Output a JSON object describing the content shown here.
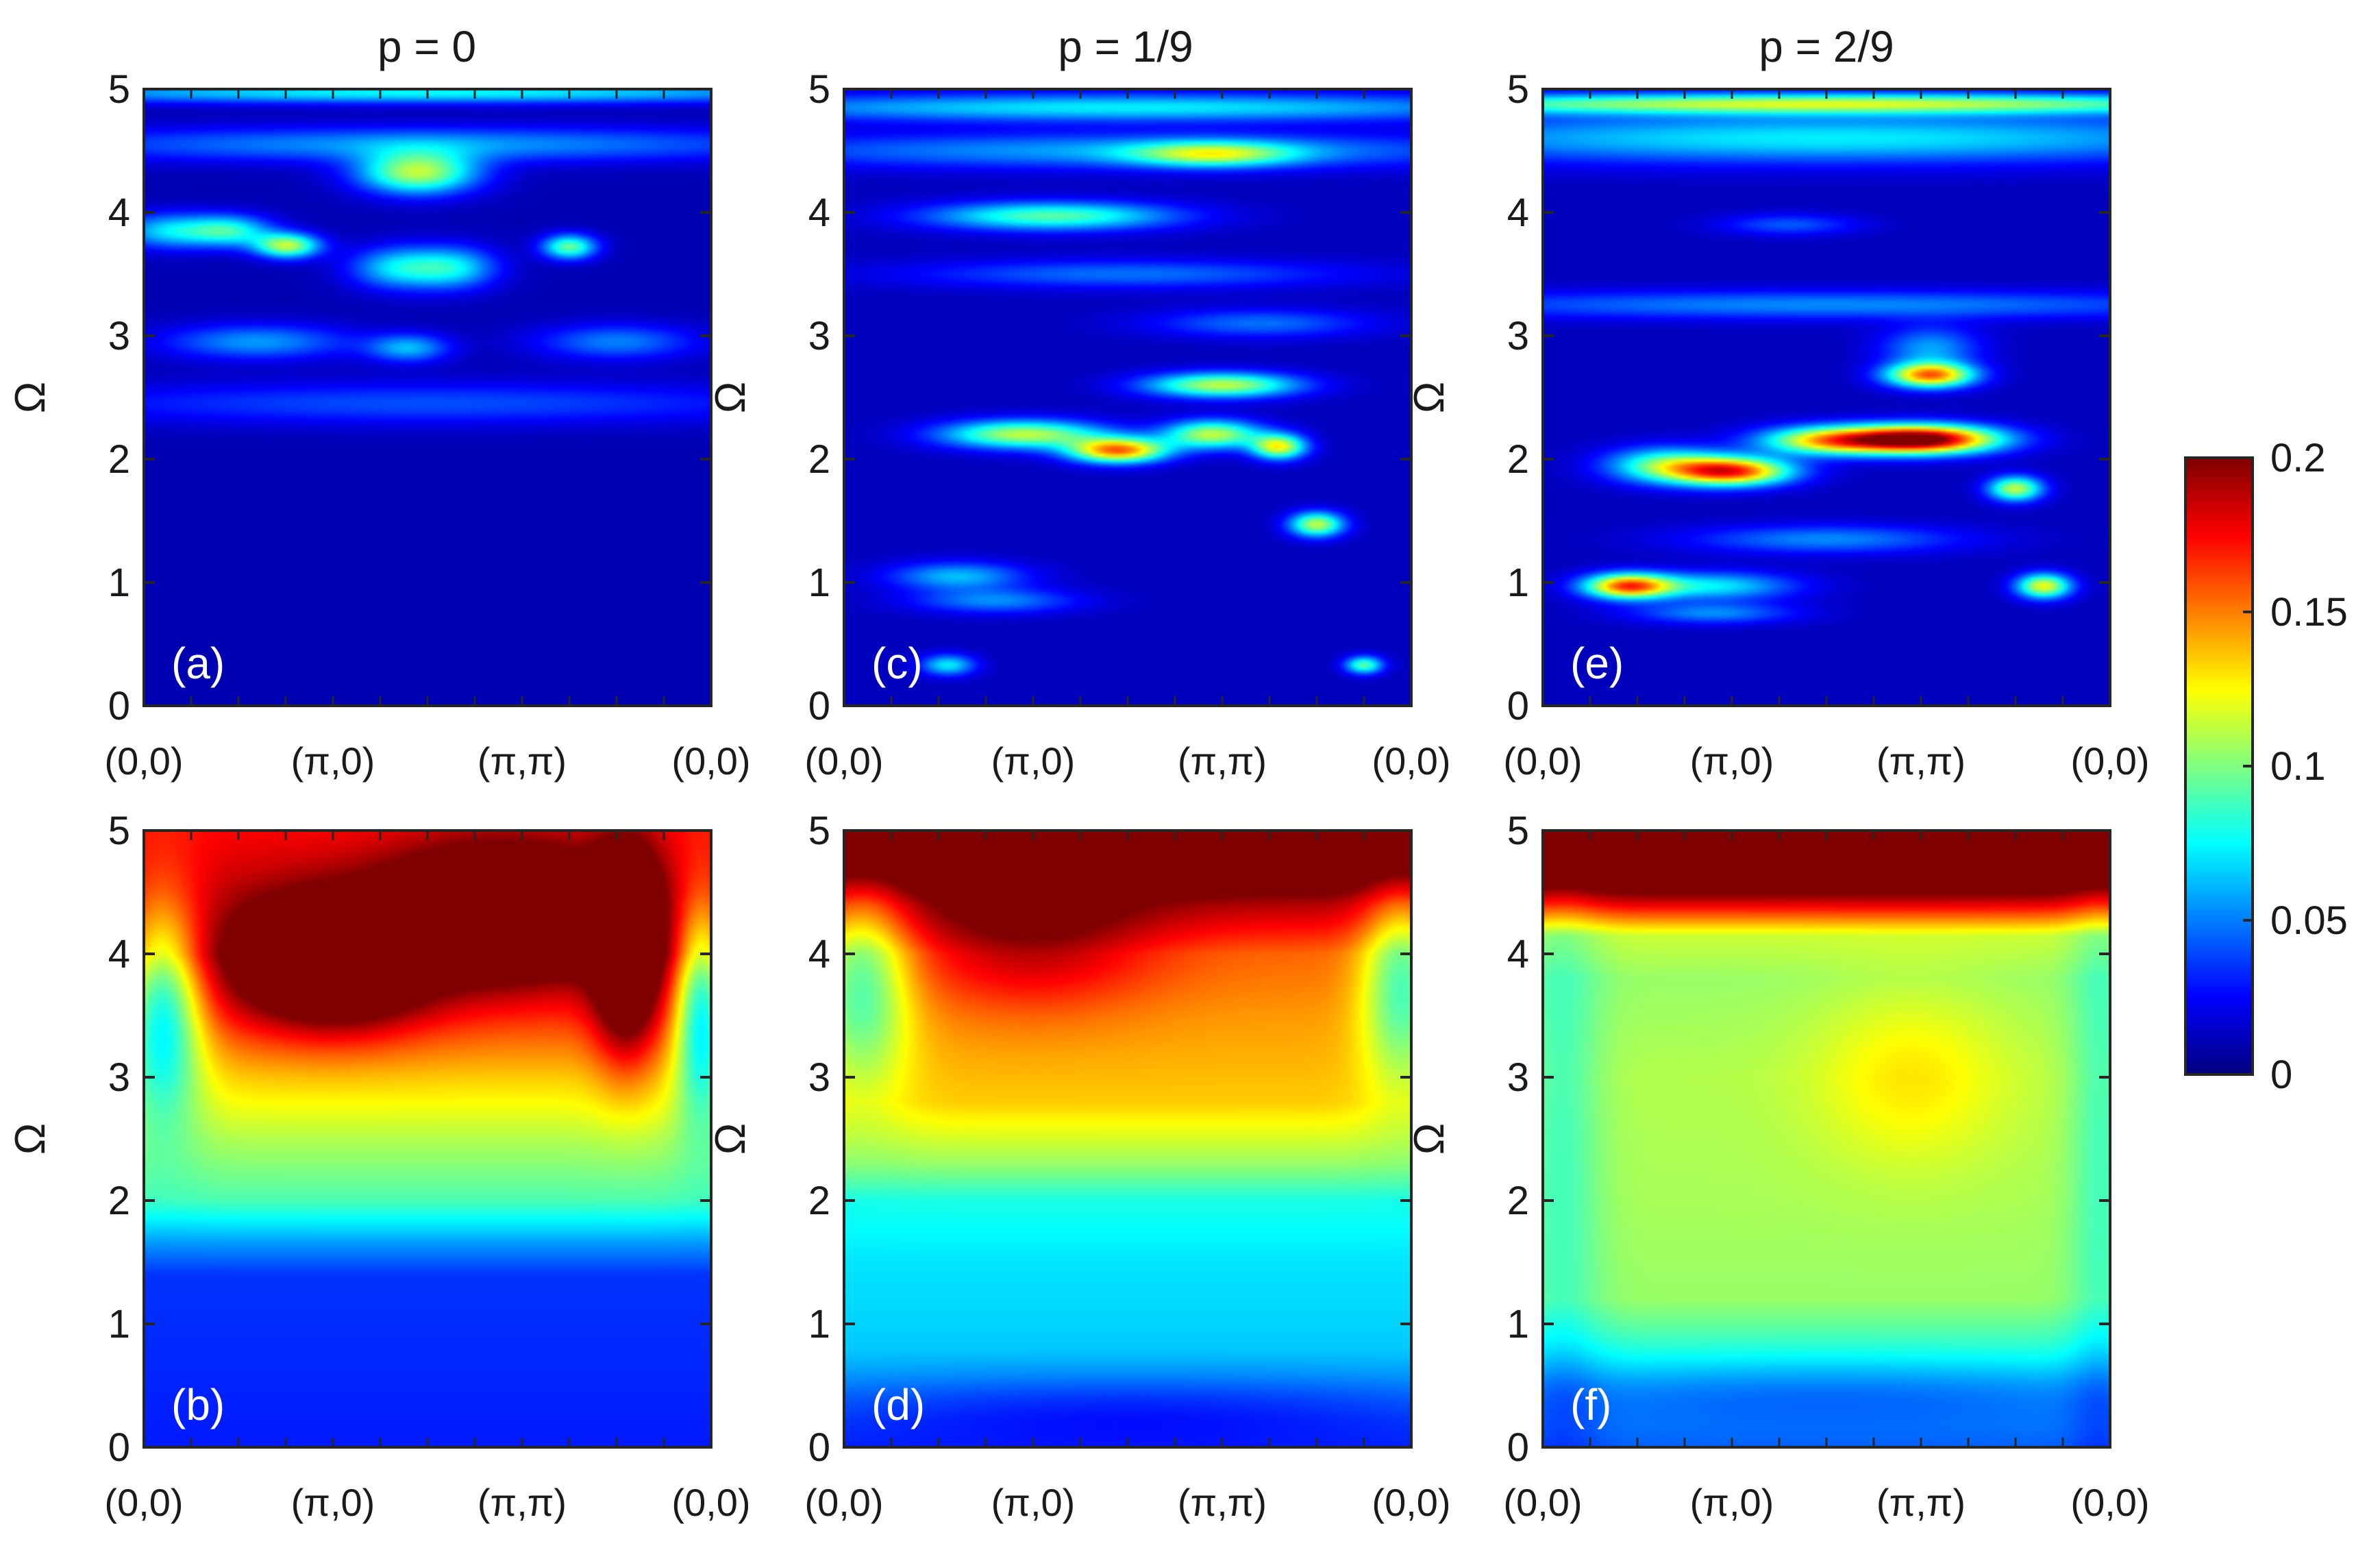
{
  "chart_data": [
    {
      "type": "heatmap",
      "panel_label": "(a)",
      "title": "p = 0",
      "ylabel": "Ω",
      "xticks": [
        "(0,0)",
        "(π,0)",
        "(π,π)",
        "(0,0)"
      ],
      "yticks": [
        "0",
        "1",
        "2",
        "3",
        "4",
        "5"
      ],
      "ylim": [
        0,
        5
      ],
      "background": 0.01,
      "blobs": [
        {
          "x": 0.12,
          "y": 3.85,
          "sx": 0.18,
          "sy": 0.1,
          "v": 0.055
        },
        {
          "x": 0.45,
          "y": 3.85,
          "sx": 0.16,
          "sy": 0.09,
          "v": 0.07
        },
        {
          "x": 0.76,
          "y": 3.73,
          "sx": 0.12,
          "sy": 0.07,
          "v": 0.1
        },
        {
          "x": 1.45,
          "y": 4.32,
          "sx": 0.22,
          "sy": 0.12,
          "v": 0.1
        },
        {
          "x": 1.35,
          "y": 3.55,
          "sx": 0.18,
          "sy": 0.12,
          "v": 0.06
        },
        {
          "x": 1.65,
          "y": 3.55,
          "sx": 0.16,
          "sy": 0.12,
          "v": 0.055
        },
        {
          "x": 2.25,
          "y": 3.72,
          "sx": 0.1,
          "sy": 0.07,
          "v": 0.085
        },
        {
          "x": 1.5,
          "y": 4.55,
          "sx": 1.5,
          "sy": 0.1,
          "v": 0.045
        },
        {
          "x": 1.5,
          "y": 4.97,
          "sx": 1.7,
          "sy": 0.06,
          "v": 0.065
        },
        {
          "x": 0.6,
          "y": 2.95,
          "sx": 0.35,
          "sy": 0.1,
          "v": 0.045
        },
        {
          "x": 1.4,
          "y": 2.9,
          "sx": 0.15,
          "sy": 0.08,
          "v": 0.05
        },
        {
          "x": 2.5,
          "y": 2.95,
          "sx": 0.3,
          "sy": 0.1,
          "v": 0.04
        },
        {
          "x": 1.5,
          "y": 2.45,
          "sx": 1.5,
          "sy": 0.12,
          "v": 0.03
        }
      ]
    },
    {
      "type": "heatmap",
      "panel_label": "(b)",
      "title": "",
      "ylabel": "Ω",
      "xticks": [
        "(0,0)",
        "(π,0)",
        "(π,π)",
        "(0,0)"
      ],
      "yticks": [
        "0",
        "1",
        "2",
        "3",
        "4",
        "5"
      ],
      "ylim": [
        0,
        5
      ],
      "background": 0.015,
      "base_profile": [
        [
          0,
          0.015
        ],
        [
          1.4,
          0.02
        ],
        [
          1.65,
          0.04
        ],
        [
          2.0,
          0.075
        ],
        [
          2.5,
          0.095
        ],
        [
          3.0,
          0.12
        ],
        [
          3.5,
          0.15
        ],
        [
          4.0,
          0.175
        ],
        [
          4.5,
          0.17
        ],
        [
          5.0,
          0.16
        ]
      ],
      "blobs": [
        {
          "x": 1.0,
          "y": 3.9,
          "sx": 0.35,
          "sy": 0.35,
          "v": 0.09
        },
        {
          "x": 1.9,
          "y": 4.35,
          "sx": 0.4,
          "sy": 0.35,
          "v": 0.09
        },
        {
          "x": 2.55,
          "y": 4.0,
          "sx": 0.12,
          "sy": 0.6,
          "v": 0.08
        },
        {
          "x": 0.1,
          "y": 3.6,
          "sx": 0.15,
          "sy": 0.6,
          "v": -0.09
        },
        {
          "x": 2.95,
          "y": 3.6,
          "sx": 0.1,
          "sy": 0.6,
          "v": -0.09
        }
      ]
    },
    {
      "type": "heatmap",
      "panel_label": "(c)",
      "title": "p = 1/9",
      "ylabel": "Ω",
      "xticks": [
        "(0,0)",
        "(π,0)",
        "(π,π)",
        "(0,0)"
      ],
      "yticks": [
        "0",
        "1",
        "2",
        "3",
        "4",
        "5"
      ],
      "ylim": [
        0,
        5
      ],
      "background": 0.012,
      "blobs": [
        {
          "x": 0.95,
          "y": 2.2,
          "sx": 0.3,
          "sy": 0.08,
          "v": 0.1
        },
        {
          "x": 1.45,
          "y": 2.07,
          "sx": 0.18,
          "sy": 0.07,
          "v": 0.14
        },
        {
          "x": 1.95,
          "y": 2.2,
          "sx": 0.18,
          "sy": 0.08,
          "v": 0.1
        },
        {
          "x": 2.3,
          "y": 2.1,
          "sx": 0.1,
          "sy": 0.07,
          "v": 0.11
        },
        {
          "x": 2.0,
          "y": 2.6,
          "sx": 0.28,
          "sy": 0.07,
          "v": 0.1
        },
        {
          "x": 2.5,
          "y": 1.47,
          "sx": 0.1,
          "sy": 0.07,
          "v": 0.1
        },
        {
          "x": 2.75,
          "y": 0.33,
          "sx": 0.07,
          "sy": 0.05,
          "v": 0.08
        },
        {
          "x": 0.55,
          "y": 0.33,
          "sx": 0.1,
          "sy": 0.06,
          "v": 0.06
        },
        {
          "x": 0.6,
          "y": 1.05,
          "sx": 0.25,
          "sy": 0.08,
          "v": 0.05
        },
        {
          "x": 0.8,
          "y": 0.85,
          "sx": 0.3,
          "sy": 0.07,
          "v": 0.04
        },
        {
          "x": 1.1,
          "y": 3.97,
          "sx": 0.45,
          "sy": 0.08,
          "v": 0.08
        },
        {
          "x": 1.95,
          "y": 4.47,
          "sx": 0.3,
          "sy": 0.07,
          "v": 0.075
        },
        {
          "x": 1.5,
          "y": 4.5,
          "sx": 1.5,
          "sy": 0.1,
          "v": 0.045
        },
        {
          "x": 1.5,
          "y": 4.85,
          "sx": 1.6,
          "sy": 0.08,
          "v": 0.06
        },
        {
          "x": 1.5,
          "y": 3.5,
          "sx": 0.8,
          "sy": 0.08,
          "v": 0.035
        },
        {
          "x": 2.2,
          "y": 3.1,
          "sx": 0.4,
          "sy": 0.08,
          "v": 0.035
        }
      ]
    },
    {
      "type": "heatmap",
      "panel_label": "(d)",
      "title": "",
      "ylabel": "Ω",
      "xticks": [
        "(0,0)",
        "(π,0)",
        "(π,π)",
        "(0,0)"
      ],
      "yticks": [
        "0",
        "1",
        "2",
        "3",
        "4",
        "5"
      ],
      "ylim": [
        0,
        5
      ],
      "background": 0.02,
      "base_profile": [
        [
          0,
          0.015
        ],
        [
          0.3,
          0.03
        ],
        [
          0.8,
          0.045
        ],
        [
          1.5,
          0.05
        ],
        [
          2.0,
          0.06
        ],
        [
          2.3,
          0.085
        ],
        [
          2.8,
          0.115
        ],
        [
          3.5,
          0.125
        ],
        [
          4.0,
          0.135
        ],
        [
          4.4,
          0.17
        ],
        [
          4.7,
          0.21
        ],
        [
          5.0,
          0.25
        ]
      ],
      "blobs": [
        {
          "x": 1.0,
          "y": 4.1,
          "sx": 0.45,
          "sy": 0.4,
          "v": 0.035
        },
        {
          "x": 0.1,
          "y": 3.8,
          "sx": 0.18,
          "sy": 0.6,
          "v": -0.06
        },
        {
          "x": 2.95,
          "y": 3.8,
          "sx": 0.15,
          "sy": 0.6,
          "v": -0.06
        },
        {
          "x": 1.5,
          "y": 0.3,
          "sx": 1.4,
          "sy": 0.2,
          "v": -0.02
        }
      ]
    },
    {
      "type": "heatmap",
      "panel_label": "(e)",
      "title": "p = 2/9",
      "ylabel": "Ω",
      "xticks": [
        "(0,0)",
        "(π,0)",
        "(π,π)",
        "(0,0)"
      ],
      "yticks": [
        "0",
        "1",
        "2",
        "3",
        "4",
        "5"
      ],
      "ylim": [
        0,
        5
      ],
      "background": 0.012,
      "blobs": [
        {
          "x": 2.0,
          "y": 2.16,
          "sx": 0.28,
          "sy": 0.08,
          "v": 0.2
        },
        {
          "x": 1.5,
          "y": 2.15,
          "sx": 0.25,
          "sy": 0.08,
          "v": 0.11
        },
        {
          "x": 1.0,
          "y": 1.9,
          "sx": 0.22,
          "sy": 0.08,
          "v": 0.15
        },
        {
          "x": 0.65,
          "y": 1.95,
          "sx": 0.22,
          "sy": 0.1,
          "v": 0.08
        },
        {
          "x": 2.05,
          "y": 2.68,
          "sx": 0.16,
          "sy": 0.07,
          "v": 0.14
        },
        {
          "x": 2.05,
          "y": 2.9,
          "sx": 0.18,
          "sy": 0.12,
          "v": 0.045
        },
        {
          "x": 2.5,
          "y": 1.76,
          "sx": 0.1,
          "sy": 0.07,
          "v": 0.1
        },
        {
          "x": 2.65,
          "y": 0.97,
          "sx": 0.1,
          "sy": 0.07,
          "v": 0.11
        },
        {
          "x": 0.45,
          "y": 0.97,
          "sx": 0.16,
          "sy": 0.07,
          "v": 0.14
        },
        {
          "x": 0.9,
          "y": 0.97,
          "sx": 0.3,
          "sy": 0.08,
          "v": 0.06
        },
        {
          "x": 0.9,
          "y": 0.75,
          "sx": 0.3,
          "sy": 0.06,
          "v": 0.04
        },
        {
          "x": 1.5,
          "y": 1.35,
          "sx": 0.5,
          "sy": 0.08,
          "v": 0.04
        },
        {
          "x": 1.5,
          "y": 4.6,
          "sx": 1.8,
          "sy": 0.14,
          "v": 0.06
        },
        {
          "x": 1.5,
          "y": 4.88,
          "sx": 1.8,
          "sy": 0.06,
          "v": 0.1
        },
        {
          "x": 1.5,
          "y": 3.25,
          "sx": 1.6,
          "sy": 0.08,
          "v": 0.04
        },
        {
          "x": 1.3,
          "y": 3.9,
          "sx": 0.25,
          "sy": 0.06,
          "v": 0.03
        }
      ]
    },
    {
      "type": "heatmap",
      "panel_label": "(f)",
      "title": "",
      "ylabel": "Ω",
      "xticks": [
        "(0,0)",
        "(π,0)",
        "(π,π)",
        "(0,0)"
      ],
      "yticks": [
        "0",
        "1",
        "2",
        "3",
        "4",
        "5"
      ],
      "ylim": [
        0,
        5
      ],
      "background": 0.02,
      "base_profile": [
        [
          0,
          0.025
        ],
        [
          0.3,
          0.04
        ],
        [
          0.7,
          0.06
        ],
        [
          1.2,
          0.085
        ],
        [
          2.0,
          0.088
        ],
        [
          3.0,
          0.09
        ],
        [
          3.8,
          0.085
        ],
        [
          4.15,
          0.095
        ],
        [
          4.4,
          0.16
        ],
        [
          4.7,
          0.23
        ],
        [
          5.0,
          0.26
        ]
      ],
      "blobs": [
        {
          "x": 1.95,
          "y": 3.0,
          "sx": 0.35,
          "sy": 0.5,
          "v": 0.02
        },
        {
          "x": 0.1,
          "y": 2.5,
          "sx": 0.15,
          "sy": 2.0,
          "v": -0.02
        },
        {
          "x": 2.95,
          "y": 2.5,
          "sx": 0.12,
          "sy": 2.0,
          "v": -0.02
        },
        {
          "x": 1.5,
          "y": 0.45,
          "sx": 1.5,
          "sy": 0.2,
          "v": -0.02
        }
      ]
    }
  ],
  "colorbar": {
    "colormap": "jet",
    "range": [
      0,
      0.2
    ],
    "ticks": [
      "0",
      "0.05",
      "0.1",
      "0.15",
      "0.2"
    ]
  }
}
